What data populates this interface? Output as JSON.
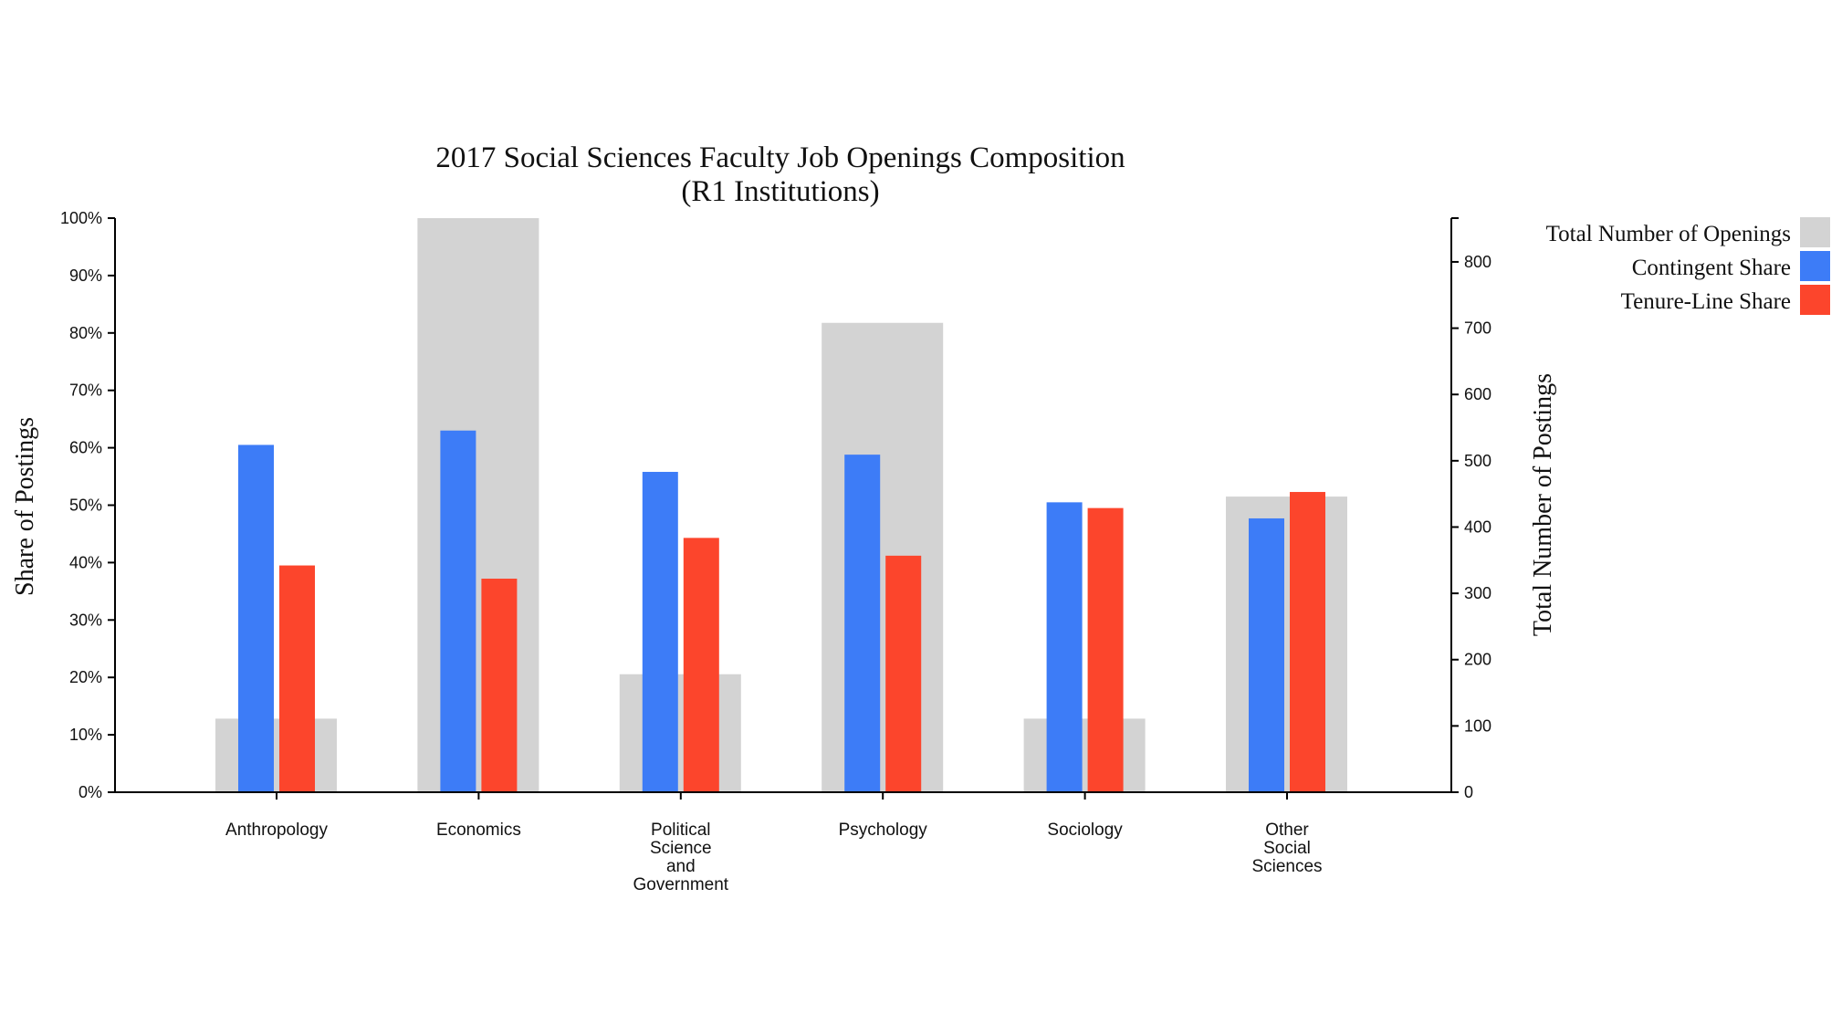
{
  "chart_data": {
    "type": "bar",
    "title": "2017 Social Sciences Faculty Job Openings Composition",
    "subtitle": "(R1 Institutions)",
    "ylabel_left": "Share of Postings",
    "ylabel_right": "Total Number of Postings",
    "xlabel": "",
    "categories": [
      [
        "Anthropology"
      ],
      [
        "Economics"
      ],
      [
        "Political",
        "Science",
        "and",
        "Government"
      ],
      [
        "Psychology"
      ],
      [
        "Sociology"
      ],
      [
        "Other",
        "Social",
        "Sciences"
      ]
    ],
    "left_axis": {
      "ylim": [
        0,
        1
      ],
      "ticks": [
        "0%",
        "10%",
        "20%",
        "30%",
        "40%",
        "50%",
        "60%",
        "70%",
        "80%",
        "90%",
        "100%"
      ]
    },
    "right_axis": {
      "ylim": [
        0,
        866
      ],
      "ticks": [
        "0",
        "100",
        "200",
        "300",
        "400",
        "500",
        "600",
        "700",
        "800"
      ]
    },
    "series": [
      {
        "name": "Total Number of Openings",
        "axis": "right",
        "color": "#d3d3d3",
        "values": [
          111,
          866,
          178,
          708,
          111,
          446
        ]
      },
      {
        "name": "Contingent Share",
        "axis": "left",
        "color": "#3d7cf7",
        "values": [
          0.605,
          0.63,
          0.558,
          0.588,
          0.505,
          0.477
        ]
      },
      {
        "name": "Tenure-Line Share",
        "axis": "left",
        "color": "#fc452c",
        "values": [
          0.395,
          0.372,
          0.443,
          0.412,
          0.495,
          0.523
        ]
      }
    ],
    "legend_position": "top-right",
    "grid": false
  }
}
